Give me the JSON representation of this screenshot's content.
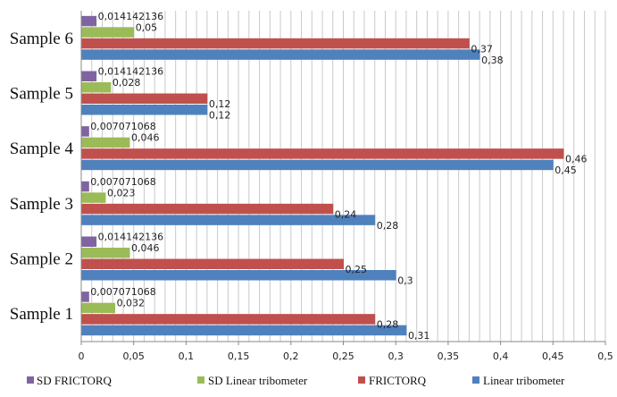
{
  "chart_data": {
    "type": "bar",
    "orientation": "horizontal",
    "categories": [
      "Sample 1",
      "Sample 2",
      "Sample 3",
      "Sample 4",
      "Sample 5",
      "Sample 6"
    ],
    "series": [
      {
        "name": "Linear tribometer",
        "color": "#4f81bd",
        "values": [
          0.31,
          0.3,
          0.28,
          0.45,
          0.12,
          0.38
        ],
        "labels": [
          "0,31",
          "0,3",
          "0,28",
          "0,45",
          "0,12",
          "0,38"
        ]
      },
      {
        "name": "FRICTORQ",
        "color": "#c0504d",
        "values": [
          0.28,
          0.25,
          0.24,
          0.46,
          0.12,
          0.37
        ],
        "labels": [
          "0,28",
          "0,25",
          "0,24",
          "0,46",
          "0,12",
          "0,37"
        ]
      },
      {
        "name": "SD Linear tribometer",
        "color": "#9bbb59",
        "values": [
          0.032,
          0.046,
          0.023,
          0.046,
          0.028,
          0.05
        ],
        "labels": [
          "0,032",
          "0,046",
          "0,023",
          "0,046",
          "0,028",
          "0,05"
        ]
      },
      {
        "name": "SD FRICTORQ",
        "color": "#8064a2",
        "values": [
          0.007071068,
          0.014142136,
          0.007071068,
          0.007071068,
          0.014142136,
          0.014142136
        ],
        "labels": [
          "0,007071068",
          "0,014142136",
          "0,007071068",
          "0,007071068",
          "0,014142136",
          "0,014142136"
        ]
      }
    ],
    "xlim": [
      0,
      0.5
    ],
    "xticks": [
      "0",
      "0,05",
      "0,1",
      "0,15",
      "0,2",
      "0,25",
      "0,3",
      "0,35",
      "0,4",
      "0,45",
      "0,5"
    ],
    "grid": true,
    "legend_position": "bottom",
    "legend_order": [
      "SD FRICTORQ",
      "SD Linear tribometer",
      "FRICTORQ",
      "Linear tribometer"
    ],
    "title": "",
    "xlabel": "",
    "ylabel": ""
  }
}
